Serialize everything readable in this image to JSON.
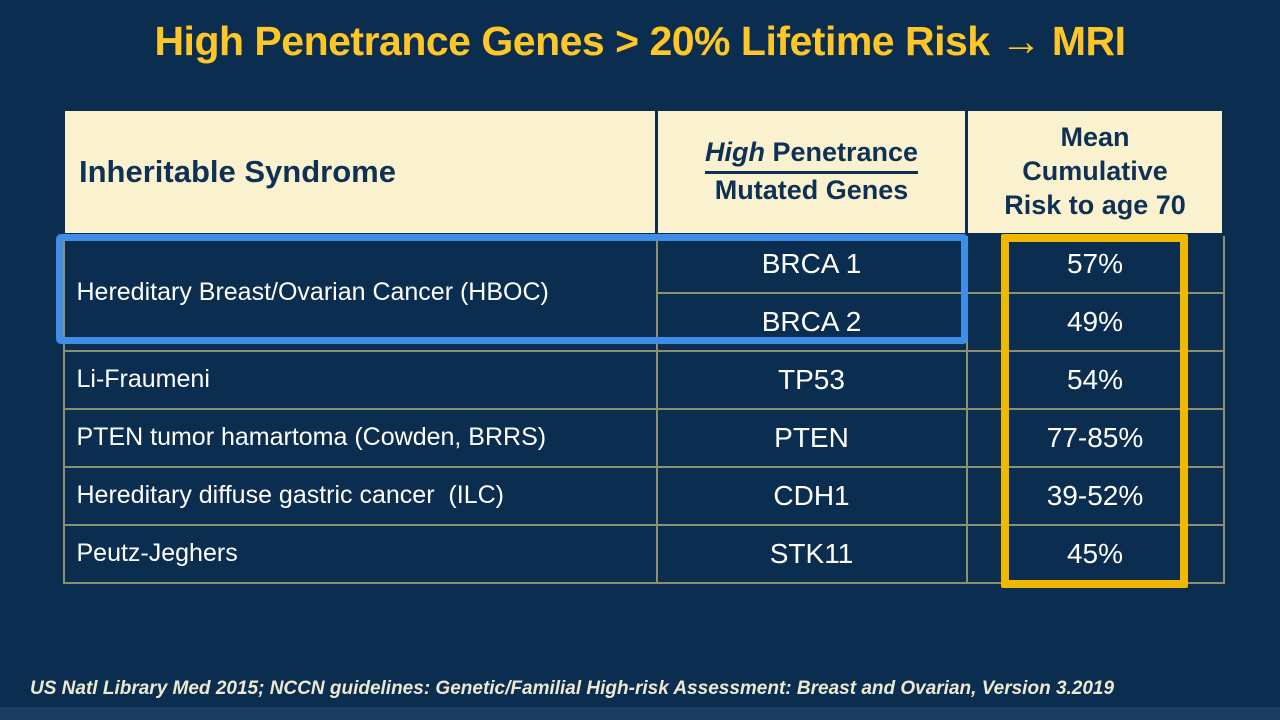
{
  "slide": {
    "title": "High Penetrance Genes > 20% Lifetime Risk → MRI",
    "footer": "US Natl Library Med 2015; NCCN guidelines: Genetic/Familial High-risk Assessment: Breast and Ovarian, Version 3.2019"
  },
  "table": {
    "header": {
      "syndrome": "Inheritable Syndrome",
      "genes_line1_word1": "High",
      "genes_line1_word2": "Penetrance",
      "genes_line2": "Mutated Genes",
      "risk_line1": "Mean",
      "risk_line2": "Cumulative",
      "risk_line3": "Risk to age 70"
    },
    "rows": [
      {
        "syndrome": "Hereditary Breast/Ovarian Cancer (HBOC)",
        "gene": "BRCA 1",
        "risk": "57%"
      },
      {
        "gene": "BRCA 2",
        "risk": "49%"
      },
      {
        "syndrome": "Li-Fraumeni",
        "gene": "TP53",
        "risk": "54%"
      },
      {
        "syndrome": "PTEN tumor hamartoma (Cowden, BRRS)",
        "gene": "PTEN",
        "risk": "77-85%"
      },
      {
        "syndrome": "Hereditary diffuse gastric cancer  (ILC)",
        "gene": "CDH1",
        "risk": "39-52%"
      },
      {
        "syndrome": "Peutz-Jeghers",
        "gene": "STK11",
        "risk": "45%"
      }
    ]
  },
  "highlights": {
    "hboc_box_color": "#3E8EE8",
    "risk_box_color": "#F0B800"
  },
  "colors": {
    "background": "#0B2D4F",
    "title_text": "#FFC627",
    "header_fill": "#FAF2CF",
    "header_text": "#0F3156",
    "cell_text": "#FFFFFF",
    "gridline": "#8A9070",
    "footer_text": "#EDE8D2",
    "bottom_bar": "#1B3D60"
  }
}
